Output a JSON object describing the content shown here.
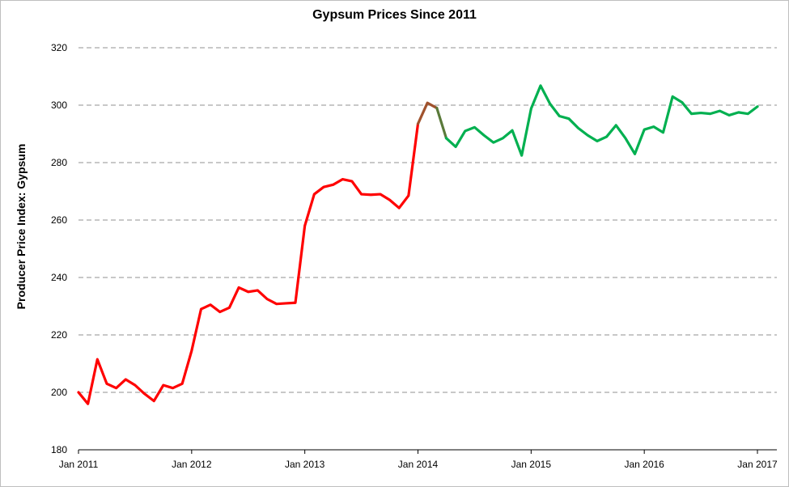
{
  "chart_data": {
    "type": "line",
    "title": "Gypsum Prices Since 2011",
    "xlabel": "",
    "ylabel": "Producer Price Index: Gypsum",
    "ylim": [
      180,
      320
    ],
    "yticks": [
      180,
      200,
      220,
      240,
      260,
      280,
      300,
      320
    ],
    "xticks": [
      "Jan 2011",
      "Jan 2012",
      "Jan 2013",
      "Jan 2014",
      "Jan 2015",
      "Jan 2016",
      "Jan 2017"
    ],
    "xlim": [
      "2011-01",
      "2017-01"
    ],
    "grid": "horizontal dashed",
    "legend": "none",
    "colors": {
      "early": "#ff0000",
      "transition": "#a0522d",
      "late": "#00b050",
      "grid": "#a6a6a6"
    },
    "x": [
      "2011-01",
      "2011-02",
      "2011-03",
      "2011-04",
      "2011-05",
      "2011-06",
      "2011-07",
      "2011-08",
      "2011-09",
      "2011-10",
      "2011-11",
      "2011-12",
      "2012-01",
      "2012-02",
      "2012-03",
      "2012-04",
      "2012-05",
      "2012-06",
      "2012-07",
      "2012-08",
      "2012-09",
      "2012-10",
      "2012-11",
      "2012-12",
      "2013-01",
      "2013-02",
      "2013-03",
      "2013-04",
      "2013-05",
      "2013-06",
      "2013-07",
      "2013-08",
      "2013-09",
      "2013-10",
      "2013-11",
      "2013-12",
      "2014-01",
      "2014-02",
      "2014-03",
      "2014-04",
      "2014-05",
      "2014-06",
      "2014-07",
      "2014-08",
      "2014-09",
      "2014-10",
      "2014-11",
      "2014-12",
      "2015-01",
      "2015-02",
      "2015-03",
      "2015-04",
      "2015-05",
      "2015-06",
      "2015-07",
      "2015-08",
      "2015-09",
      "2015-10",
      "2015-11",
      "2015-12",
      "2016-01",
      "2016-02",
      "2016-03",
      "2016-04",
      "2016-05",
      "2016-06",
      "2016-07",
      "2016-08",
      "2016-09",
      "2016-10",
      "2016-11",
      "2016-12",
      "2017-01"
    ],
    "values": [
      200,
      196,
      211.5,
      203,
      201.5,
      204.5,
      202.5,
      199.5,
      197,
      202.5,
      201.5,
      203,
      214.5,
      229,
      230.5,
      228,
      229.5,
      236.5,
      235,
      235.5,
      232.5,
      230.8,
      231,
      231.2,
      258,
      269,
      271.5,
      272.3,
      274.2,
      273.5,
      269,
      268.8,
      269,
      267,
      264.2,
      268.5,
      293.5,
      300.8,
      299,
      288.5,
      285.5,
      291,
      292.3,
      289.5,
      287,
      288.5,
      291.2,
      282.5,
      298.8,
      306.8,
      300.5,
      296.2,
      295.3,
      292,
      289.5,
      287.5,
      289,
      293,
      288.5,
      283,
      291.5,
      292.5,
      290.5,
      303,
      301,
      297,
      297.3,
      297,
      298,
      296.5,
      297.5,
      297,
      299.5
    ],
    "color_ranges": [
      {
        "from": 0,
        "to": 36,
        "color": "#ff0000"
      },
      {
        "from": 36,
        "to": 38,
        "color": "#a0522d"
      },
      {
        "from": 38,
        "to": 39,
        "color": "#5a7a3a"
      },
      {
        "from": 39,
        "to": 72,
        "color": "#00b050"
      }
    ]
  }
}
